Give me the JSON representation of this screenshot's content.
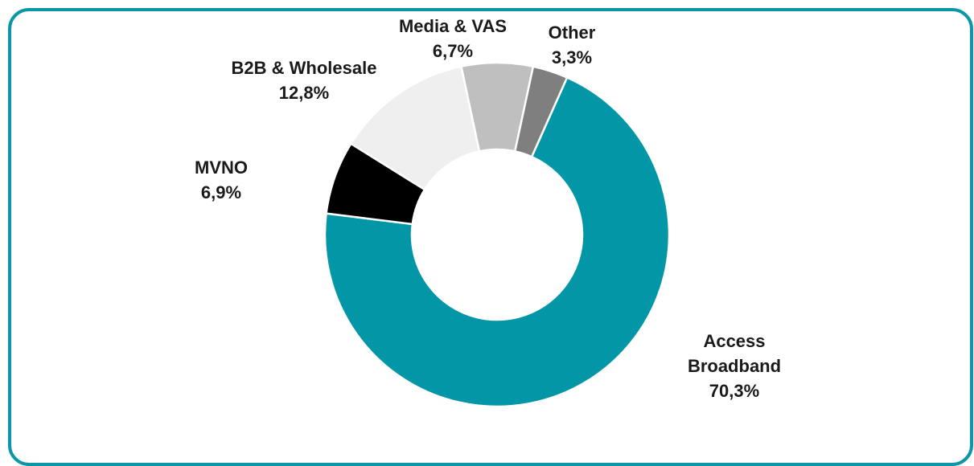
{
  "chart_data": {
    "type": "pie",
    "donut": true,
    "slices": [
      {
        "name": "Access Broadband",
        "label_lines": [
          "Access",
          "Broadband"
        ],
        "value_label": "70,3%",
        "value": 70.3,
        "color": "#0396a6"
      },
      {
        "name": "MVNO",
        "label_lines": [
          "MVNO"
        ],
        "value_label": "6,9%",
        "value": 6.9,
        "color": "#000000"
      },
      {
        "name": "B2B & Wholesale",
        "label_lines": [
          "B2B & Wholesale"
        ],
        "value_label": "12,8%",
        "value": 12.8,
        "color": "#efefef"
      },
      {
        "name": "Media & VAS",
        "label_lines": [
          "Media & VAS"
        ],
        "value_label": "6,7%",
        "value": 6.7,
        "color": "#bfbfbf"
      },
      {
        "name": "Other",
        "label_lines": [
          "Other"
        ],
        "value_label": "3,3%",
        "value": 3.3,
        "color": "#7f7f7f"
      }
    ],
    "border_color": "#0b97a5"
  }
}
